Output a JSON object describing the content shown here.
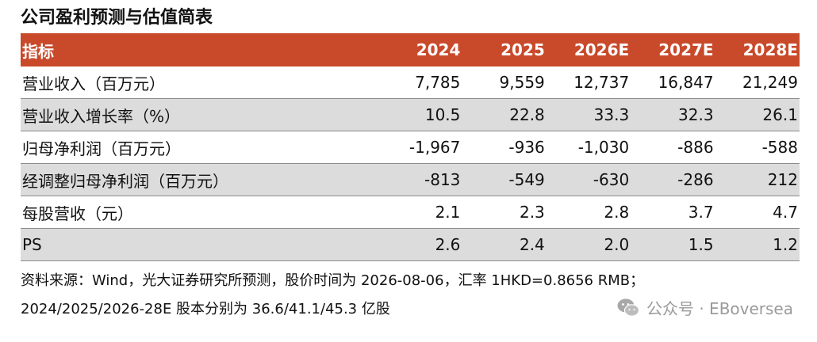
{
  "title": "公司盈利预测与估值简表",
  "table": {
    "header": {
      "label": "指标",
      "years": [
        "2024",
        "2025",
        "2026E",
        "2027E",
        "2028E"
      ]
    },
    "rows": [
      {
        "label": "营业收入（百万元）",
        "values": [
          "7,785",
          "9,559",
          "12,737",
          "16,847",
          "21,249"
        ]
      },
      {
        "label": "营业收入增长率（%）",
        "values": [
          "10.5",
          "22.8",
          "33.3",
          "32.3",
          "26.1"
        ]
      },
      {
        "label": "归母净利润（百万元）",
        "values": [
          "-1,967",
          "-936",
          "-1,030",
          "-886",
          "-588"
        ]
      },
      {
        "label": "经调整归母净利润（百万元）",
        "values": [
          "-813",
          "-549",
          "-630",
          "-286",
          "212"
        ]
      },
      {
        "label": "每股营收（元）",
        "values": [
          "2.1",
          "2.3",
          "2.8",
          "3.7",
          "4.7"
        ]
      },
      {
        "label": "PS",
        "values": [
          "2.6",
          "2.4",
          "2.0",
          "1.5",
          "1.2"
        ]
      }
    ]
  },
  "notes": {
    "line1": "资料来源：Wind，光大证券研究所预测，股价时间为 2026-08-06，汇率 1HKD=0.8656 RMB；",
    "line2": "2024/2025/2026-28E 股本分别为 36.6/41.1/45.3 亿股"
  },
  "watermark": {
    "icon": "wechat-icon",
    "text": "公众号 · EBoversea"
  },
  "colors": {
    "header_bg": "#c94a2b",
    "shaded_row_bg": "#dcdcdc",
    "watermark": "#9a9a9a"
  }
}
